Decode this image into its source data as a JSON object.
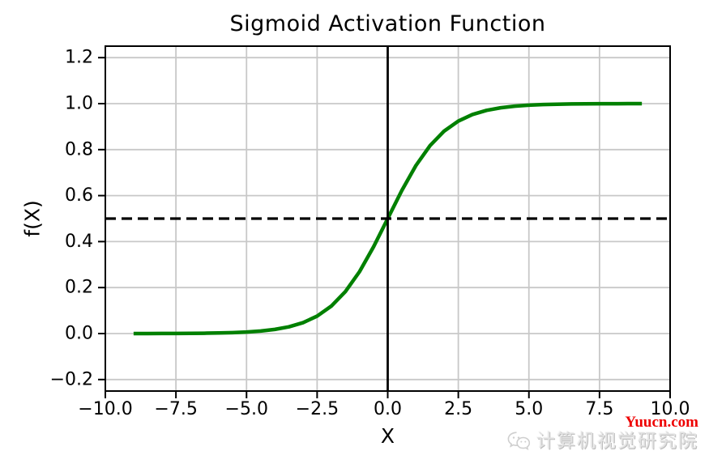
{
  "chart_data": {
    "type": "line",
    "title": "Sigmoid Activation Function",
    "xlabel": "X",
    "ylabel": "f(X)",
    "xlim": [
      -10,
      10
    ],
    "ylim": [
      -0.25,
      1.25
    ],
    "grid": true,
    "grid_color": "#c8c8c8",
    "spine_color": "#000000",
    "legend": "none",
    "xticks": {
      "values": [
        -10,
        -7.5,
        -5,
        -2.5,
        0,
        2.5,
        5,
        7.5,
        10
      ],
      "labels": [
        "−10.0",
        "−7.5",
        "−5.0",
        "−2.5",
        "0.0",
        "2.5",
        "5.0",
        "7.5",
        "10.0"
      ]
    },
    "yticks": {
      "values": [
        -0.2,
        0.0,
        0.2,
        0.4,
        0.6,
        0.8,
        1.0,
        1.2
      ],
      "labels": [
        "−0.2",
        "0.0",
        "0.2",
        "0.4",
        "0.6",
        "0.8",
        "1.0",
        "1.2"
      ]
    },
    "series": [
      {
        "name": "sigmoid",
        "color": "#008000",
        "width": 4.5,
        "x": [
          -9,
          -8.5,
          -8,
          -7.5,
          -7,
          -6.5,
          -6,
          -5.5,
          -5,
          -4.5,
          -4,
          -3.5,
          -3,
          -2.5,
          -2,
          -1.5,
          -1,
          -0.5,
          0,
          0.5,
          1,
          1.5,
          2,
          2.5,
          3,
          3.5,
          4,
          4.5,
          5,
          5.5,
          6,
          6.5,
          7,
          7.5,
          8,
          8.5,
          9
        ],
        "y": [
          0.00012,
          0.0002,
          0.00034,
          0.00055,
          0.00091,
          0.0015,
          0.00247,
          0.00407,
          0.00669,
          0.01099,
          0.01799,
          0.02931,
          0.04743,
          0.07586,
          0.1192,
          0.18243,
          0.26894,
          0.37754,
          0.5,
          0.62246,
          0.73106,
          0.81757,
          0.8808,
          0.92414,
          0.95257,
          0.97069,
          0.98201,
          0.98901,
          0.99331,
          0.99593,
          0.99753,
          0.9985,
          0.99909,
          0.99945,
          0.99966,
          0.9998,
          0.99988
        ]
      }
    ],
    "reference_lines": [
      {
        "type": "horizontal",
        "y": 0.5,
        "style": "dashed",
        "color": "#000000",
        "width": 3.2
      },
      {
        "type": "vertical",
        "x": 0,
        "style": "solid",
        "color": "#000000",
        "width": 2.8
      }
    ]
  },
  "watermark": {
    "site": "Yuucn.com",
    "site_color": "#ee0000",
    "brand": "计算机视觉研究院",
    "icon": "wechat-icon"
  }
}
